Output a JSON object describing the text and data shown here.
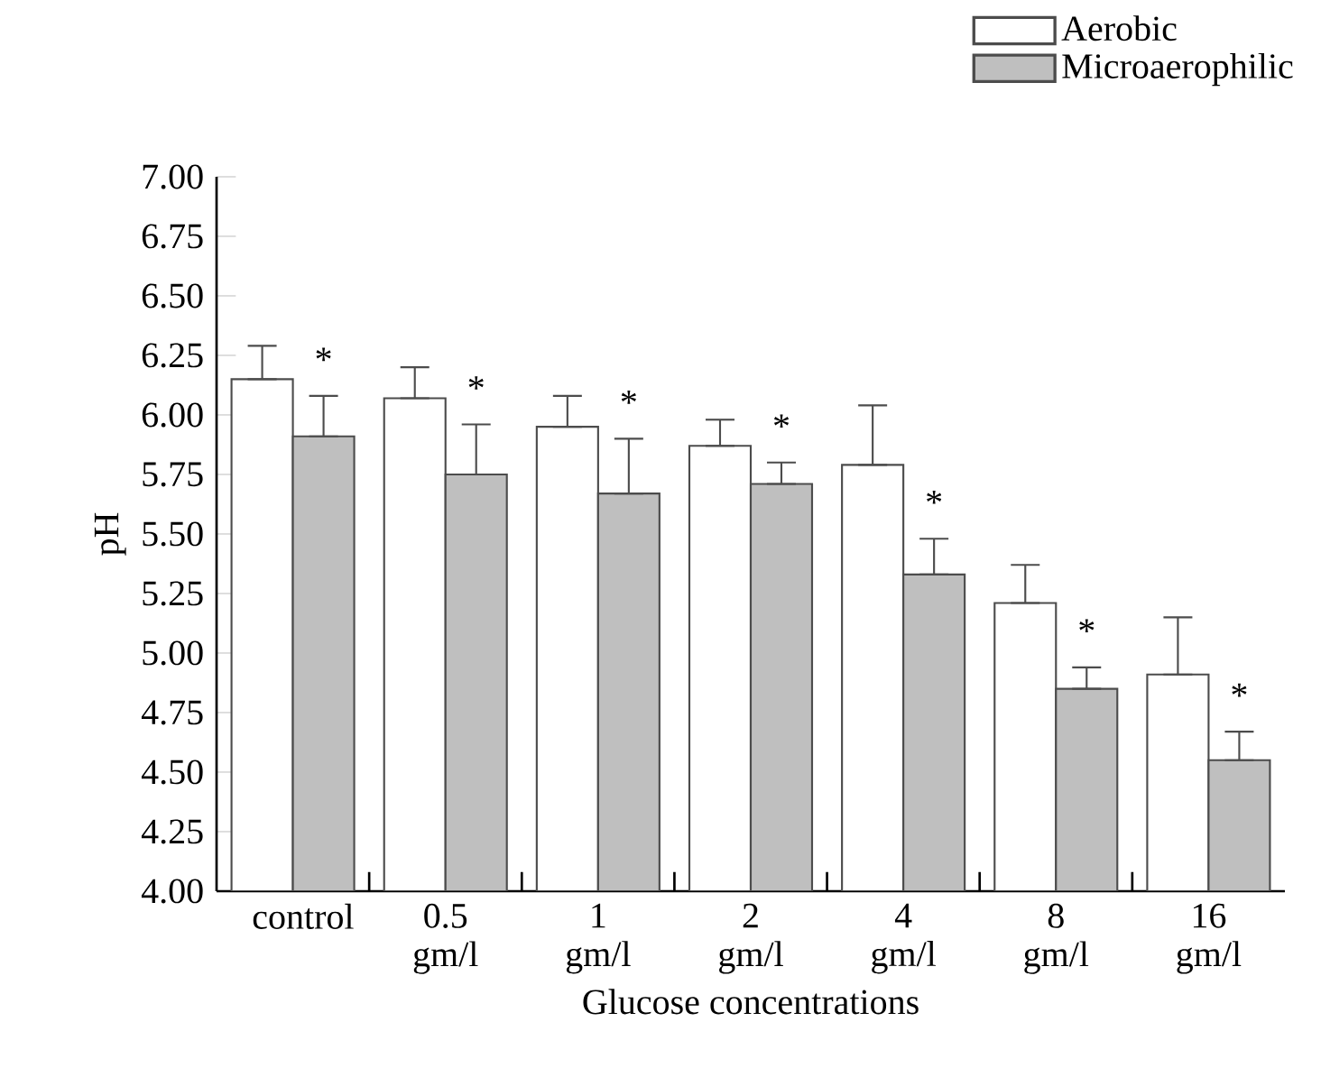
{
  "chart_data": {
    "type": "bar",
    "xlabel": "Glucose concentrations",
    "ylabel": "pH",
    "categories": [
      "control",
      "0.5 gm/l",
      "1 gm/l",
      "2 gm/l",
      "4 gm/l",
      "8 gm/l",
      "16 gm/l"
    ],
    "series": [
      {
        "name": "Aerobic",
        "color": "#ffffff",
        "values": [
          6.15,
          6.07,
          5.95,
          5.87,
          5.79,
          5.21,
          4.91
        ],
        "errors": [
          [
            6.15,
            6.29
          ],
          [
            6.07,
            6.2
          ],
          [
            5.95,
            6.08
          ],
          [
            5.87,
            5.98
          ],
          [
            5.79,
            6.04
          ],
          [
            5.21,
            5.37
          ],
          [
            4.91,
            5.15
          ]
        ]
      },
      {
        "name": "Microaerophilic",
        "color": "#bfbfbf",
        "values": [
          5.91,
          5.75,
          5.67,
          5.71,
          5.33,
          4.85,
          4.55
        ],
        "errors": [
          [
            5.91,
            6.08
          ],
          [
            5.75,
            5.96
          ],
          [
            5.67,
            5.9
          ],
          [
            5.71,
            5.8
          ],
          [
            5.33,
            5.48
          ],
          [
            4.85,
            4.94
          ],
          [
            4.55,
            4.67
          ]
        ]
      }
    ],
    "annotations": [
      "*",
      "*",
      "*",
      "*",
      "*",
      "*",
      "*"
    ],
    "ylim": [
      4,
      7
    ],
    "yticks": [
      {
        "value": 4,
        "label": "4.00"
      },
      {
        "value": 4.25,
        "label": "4.25"
      },
      {
        "value": 4.5,
        "label": "4.50"
      },
      {
        "value": 4.75,
        "label": "4.75"
      },
      {
        "value": 5,
        "label": "5.00"
      },
      {
        "value": 5.25,
        "label": "5.25"
      },
      {
        "value": 5.5,
        "label": "5.50"
      },
      {
        "value": 5.75,
        "label": "5.75"
      },
      {
        "value": 6,
        "label": "6.00"
      },
      {
        "value": 6.25,
        "label": "6.25"
      },
      {
        "value": 6.5,
        "label": "6.50"
      },
      {
        "value": 6.75,
        "label": "6.75"
      },
      {
        "value": 7,
        "label": "7.00"
      }
    ],
    "grid": false,
    "legend": "top right"
  }
}
